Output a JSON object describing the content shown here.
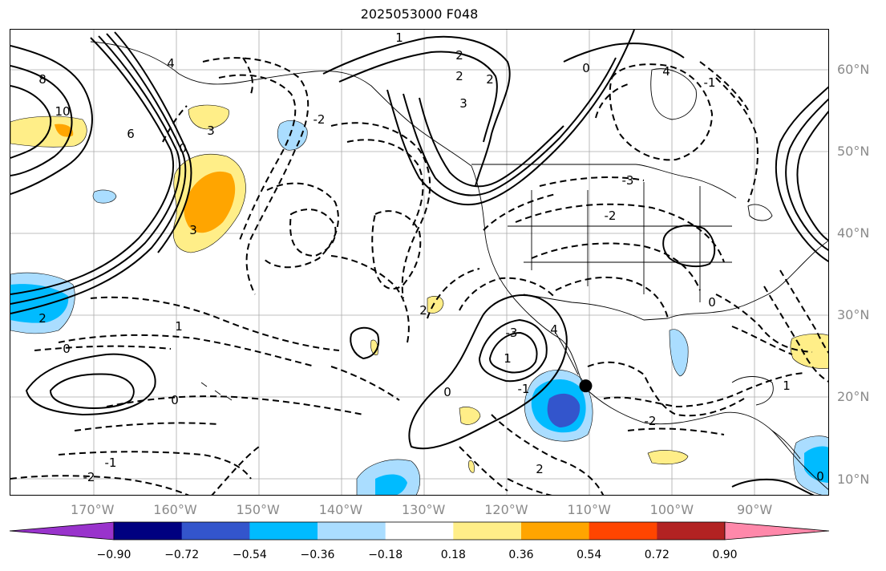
{
  "title": "2025053000 F048",
  "map": {
    "projection": "cylindrical",
    "lon_range": [
      -180,
      -81
    ],
    "lat_range": [
      8,
      65
    ],
    "lat_labels": [
      "60°N",
      "50°N",
      "40°N",
      "30°N",
      "20°N",
      "10°N"
    ],
    "lat_values": [
      60,
      50,
      40,
      30,
      20,
      10
    ],
    "lon_labels": [
      "170°W",
      "160°W",
      "150°W",
      "140°W",
      "130°W",
      "120°W",
      "110°W",
      "100°W",
      "90°W"
    ],
    "lon_values": [
      -170,
      -160,
      -150,
      -140,
      -130,
      -120,
      -110,
      -100,
      -90
    ],
    "gridlines": true,
    "marker": {
      "name": "storm-center-marker",
      "lon": -110.5,
      "lat": 21.5,
      "color": "#000000"
    },
    "contour_labels": [
      "1",
      "2",
      "4",
      "8",
      "10",
      "6",
      "0",
      "3",
      "-2",
      "-3",
      "2",
      "0",
      "3",
      "2",
      "1",
      "0",
      "-1",
      "-2",
      "2",
      "0",
      "3",
      "4",
      "1",
      "0",
      "-1",
      "2",
      "-3",
      "-2",
      "4",
      "0",
      "1",
      "0",
      "-1",
      "-2",
      "2"
    ]
  },
  "colorbar": {
    "colors": [
      "#9933cc",
      "#000080",
      "#3355cc",
      "#00bbff",
      "#aaddff",
      "#ffffff",
      "#ffee88",
      "#ffa500",
      "#ff4500",
      "#b22222",
      "#ff88aa"
    ],
    "tick_labels": [
      "−0.90",
      "−0.72",
      "−0.54",
      "−0.36",
      "−0.18",
      "0.18",
      "0.36",
      "0.54",
      "0.72",
      "0.90"
    ],
    "extend": "both"
  }
}
